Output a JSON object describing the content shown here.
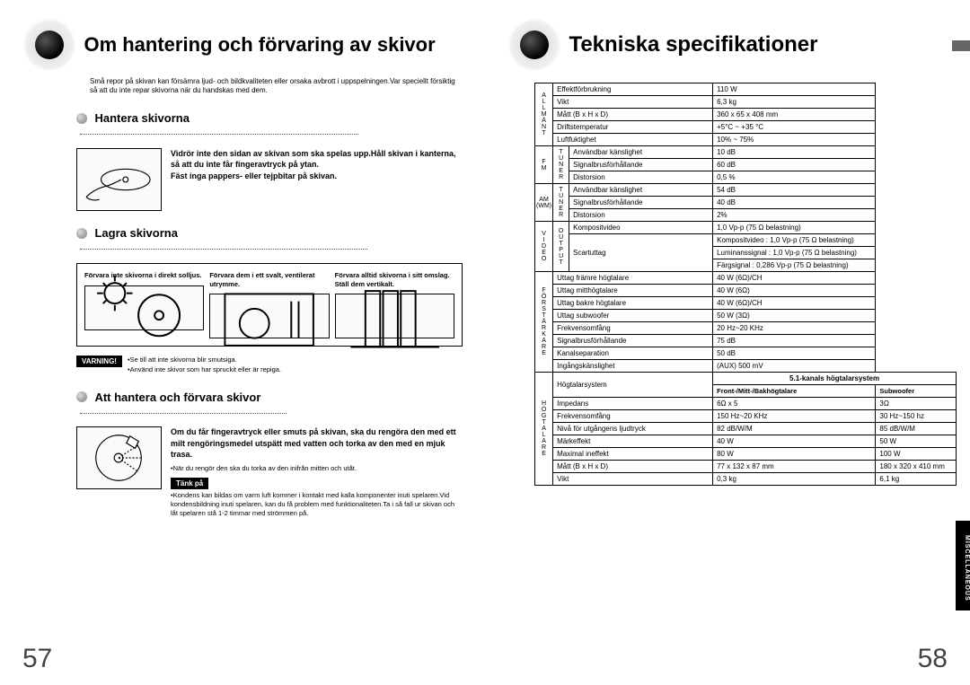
{
  "left": {
    "title": "Om hantering och förvaring av skivor",
    "intro": "Små repor på skivan kan försämra ljud- och bildkvaliteten eller orsaka avbrott i uppspelningen.Var speciellt försiktig så att du inte repar skivorna när du handskas med dem.",
    "sec1_title": "Hantera skivorna",
    "sec1_text": "Vidrör inte den sidan av skivan som ska spelas upp.Håll skivan i kanterna, så att du inte får fingeravtryck på ytan.\nFäst inga pappers- eller tejpbitar på skivan.",
    "sec2_title": "Lagra skivorna",
    "sec2_cols": [
      "Förvara inte skivorna i direkt solljus.",
      "Förvara dem i ett svalt, ventilerat utrymme.",
      "Förvara alltid skivorna i sitt omslag.\nStäll dem vertikalt."
    ],
    "warn_label": "VARNING!",
    "warn_text": "•Se till att inte skivorna blir smutsiga.\n•Använd inte skivor som har spruckit eller är repiga.",
    "sec3_title": "Att hantera och förvara skivor",
    "sec3_text_bold": "Om du får fingeravtryck eller smuts på skivan, ska du rengöra den med ett milt rengöringsmedel utspätt med vatten och torka av den med en mjuk trasa.",
    "sec3_note1": "•När du rengör den ska du torka av den inifrån mitten och utåt.",
    "think_label": "Tänk på",
    "sec3_note2": "•Kondens kan bildas om varm luft kommer i kontakt med kalla komponenter inuti spelaren.Vid kondensbildning inuti spelaren, kan du få problem med funktionaliteten.Ta i så fall ur skivan och låt spelaren stå 1-2 timmar med strömmen på.",
    "pagenum": "57"
  },
  "right": {
    "title": "Tekniska specifikationer",
    "pagenum": "58",
    "side_tab": "MISCELLANEOUS",
    "colors": {
      "border": "#000000",
      "accent": "#666666",
      "bg": "#ffffff"
    },
    "groups": [
      {
        "cat": "A\nL\nL\nM\nÄ\nN\nT",
        "rows": [
          [
            "Effektförbrukning",
            "110 W"
          ],
          [
            "Vikt",
            "6,3 kg"
          ],
          [
            "Mått (B x H x D)",
            "360 x 65 x 408 mm"
          ],
          [
            "Driftstemperatur",
            "+5°C ~ +35 °C"
          ],
          [
            "Luftfuktighet",
            "10% ~ 75%"
          ]
        ]
      },
      {
        "cat": "F\nM",
        "sub": "T\nU\nN\nE\nR",
        "rows": [
          [
            "Användbar känslighet",
            "10 dB"
          ],
          [
            "Signalbrusförhållande",
            "60 dB"
          ],
          [
            "Distorsion",
            "0,5 %"
          ]
        ]
      },
      {
        "cat": "AM\n(WM)",
        "sub": "T\nU\nN\nE\nR",
        "rows": [
          [
            "Användbar känslighet",
            "54 dB"
          ],
          [
            "Signalbrusförhållande",
            "40 dB"
          ],
          [
            "Distorsion",
            "2%"
          ]
        ]
      },
      {
        "cat": "V\nI\nD\nE\nO",
        "sub": "O\nU\nT\nP\nU\nT",
        "rows": [
          [
            "Kompositvideo",
            "1,0 Vp-p (75 Ω belastning)"
          ],
          [
            "Scartuttag",
            "Kompositvideo : 1,0 Vp-p (75 Ω belastning)"
          ],
          [
            "",
            "Luminanssignal : 1,0 Vp-p (75 Ω belastning)"
          ],
          [
            "",
            "Färgsignal : 0,286 Vp-p (75 Ω belastning)"
          ]
        ],
        "scart_span": 3
      },
      {
        "cat": "F\nÖ\nR\nS\nT\nÄ\nR\nK\nA\nR\nE",
        "rows": [
          [
            "Uttag främre högtalare",
            "40 W (6Ω)/CH"
          ],
          [
            "Uttag mitthögtalare",
            "40 W (6Ω)"
          ],
          [
            "Uttag bakre högtalare",
            "40 W (6Ω)/CH"
          ],
          [
            "Uttag subwoofer",
            "50 W (3Ω)"
          ],
          [
            "Frekvensomfång",
            "20 Hz~20 KHz"
          ],
          [
            "Signalbrusförhållande",
            "75 dB"
          ],
          [
            "Kanalseparation",
            "50 dB"
          ],
          [
            "Ingångskänslighet",
            "(AUX) 500 mV"
          ]
        ]
      }
    ],
    "speaker": {
      "cat": "H\nÖ\nG\nT\nA\nL\nA\nR\nE",
      "header": "5.1-kanals högtalarsystem",
      "cols": [
        "Högtalarsystem",
        "Front-/Mitt-/Bakhögtalare",
        "Subwoofer"
      ],
      "rows": [
        [
          "Impedans",
          "6Ω x 5",
          "3Ω"
        ],
        [
          "Frekvensomfång",
          "150 Hz~20 KHz",
          "30 Hz~150 hz"
        ],
        [
          "Nivå för utgångens ljudtryck",
          "82 dB/W/M",
          "85 dB/W/M"
        ],
        [
          "Märkeffekt",
          "40 W",
          "50 W"
        ],
        [
          "Maximal ineffekt",
          "80 W",
          "100 W"
        ],
        [
          "Mått  (B x H x D)",
          "77 x 132 x 87 mm",
          "180 x 320 x 410 mm"
        ],
        [
          "Vikt",
          "0,3 kg",
          "6,1 kg"
        ]
      ]
    }
  }
}
